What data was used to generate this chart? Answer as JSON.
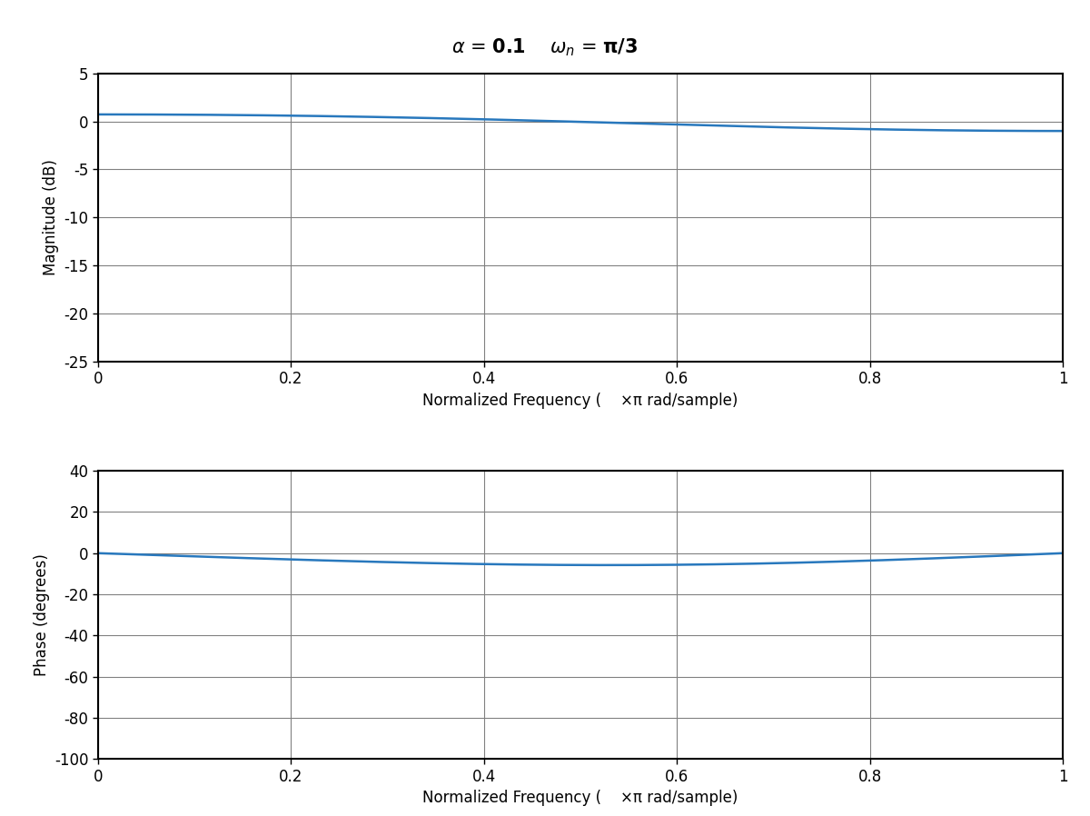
{
  "alpha": 0.1,
  "omega_n": 1.0471975511965976,
  "mag_ylabel": "Magnitude (dB)",
  "phase_ylabel": "Phase (degrees)",
  "xlabel_part1": "Normalized Frequency (",
  "xlabel_part2": "    ×π rad/sample)",
  "mag_ylim": [
    -25,
    5
  ],
  "phase_ylim": [
    -100,
    40
  ],
  "mag_yticks": [
    -25,
    -20,
    -15,
    -10,
    -5,
    0,
    5
  ],
  "phase_yticks": [
    -100,
    -80,
    -60,
    -40,
    -20,
    0,
    20,
    40
  ],
  "xlim": [
    0,
    1
  ],
  "xticks": [
    0,
    0.2,
    0.4,
    0.6,
    0.8,
    1.0
  ],
  "xtick_labels": [
    "0",
    "0.2",
    "0.4",
    "0.6",
    "0.8",
    "1"
  ],
  "line_color": "#2878bd",
  "line_width": 1.8,
  "bg_color": "#ffffff",
  "grid_color": "#808080",
  "title_fontsize": 15,
  "label_fontsize": 12,
  "tick_fontsize": 12
}
